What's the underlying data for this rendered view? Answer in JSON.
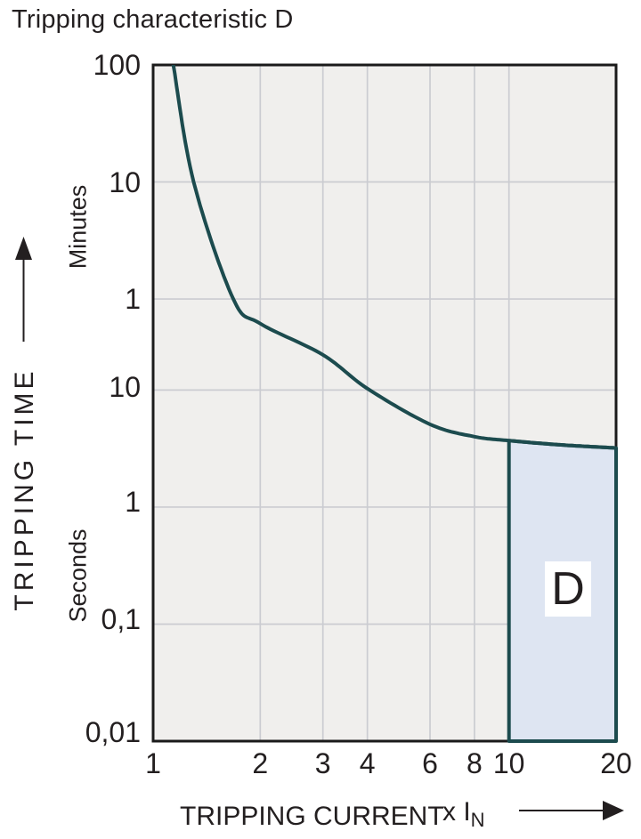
{
  "chart_data": {
    "type": "line",
    "title": "Tripping characteristic D",
    "x_axis": {
      "label": "TRIPPING CURRENT",
      "unit_label": "x I",
      "unit_sub": "N",
      "scale": "log",
      "range": [
        1,
        20
      ],
      "ticks": [
        {
          "label": "1",
          "value": 1,
          "grid": false
        },
        {
          "label": "2",
          "value": 2,
          "grid": true
        },
        {
          "label": "3",
          "value": 3,
          "grid": true
        },
        {
          "label": "4",
          "value": 4,
          "grid": true
        },
        {
          "label": "6",
          "value": 6,
          "grid": true
        },
        {
          "label": "8",
          "value": 8,
          "grid": true
        },
        {
          "label": "10",
          "value": 10,
          "grid": true
        },
        {
          "label": "20",
          "value": 20,
          "grid": false
        }
      ]
    },
    "y_axis": {
      "label": "TRIPPING TIME",
      "unit_minutes": "Minutes",
      "unit_seconds": "Seconds",
      "scale": "log",
      "range_seconds": [
        0.01,
        6000
      ],
      "ticks": [
        {
          "label": "100",
          "seconds": 6000,
          "unit": "minutes",
          "grid": false
        },
        {
          "label": "10",
          "seconds": 600,
          "unit": "minutes",
          "grid": true
        },
        {
          "label": "1",
          "seconds": 60,
          "unit": "minutes",
          "grid": true
        },
        {
          "label": "10",
          "seconds": 10,
          "unit": "seconds",
          "grid": true
        },
        {
          "label": "1",
          "seconds": 1,
          "unit": "seconds",
          "grid": true
        },
        {
          "label": "0,1",
          "seconds": 0.1,
          "unit": "seconds",
          "grid": true
        },
        {
          "label": "0,01",
          "seconds": 0.01,
          "unit": "seconds",
          "grid": false
        }
      ]
    },
    "series": [
      {
        "name": "D tripping curve",
        "points": [
          [
            1.14,
            6000
          ],
          [
            1.3,
            600
          ],
          [
            1.68,
            60
          ],
          [
            2,
            37
          ],
          [
            3,
            20
          ],
          [
            4,
            10.3
          ],
          [
            6,
            5.1
          ],
          [
            8,
            4.0
          ],
          [
            10,
            3.7
          ],
          [
            14,
            3.4
          ],
          [
            20,
            3.2
          ]
        ]
      }
    ],
    "region": {
      "label": "D",
      "x_range": [
        10,
        20
      ],
      "t_bottom": 0.01
    },
    "legend": "none",
    "grid": "on",
    "colors": {
      "curve": "#1c4b4e",
      "region_fill": "#dee5f2",
      "plot_bg": "#f0efed",
      "grid": "#cbccd1",
      "border": "#1a1a1a",
      "text": "#231f20"
    }
  }
}
